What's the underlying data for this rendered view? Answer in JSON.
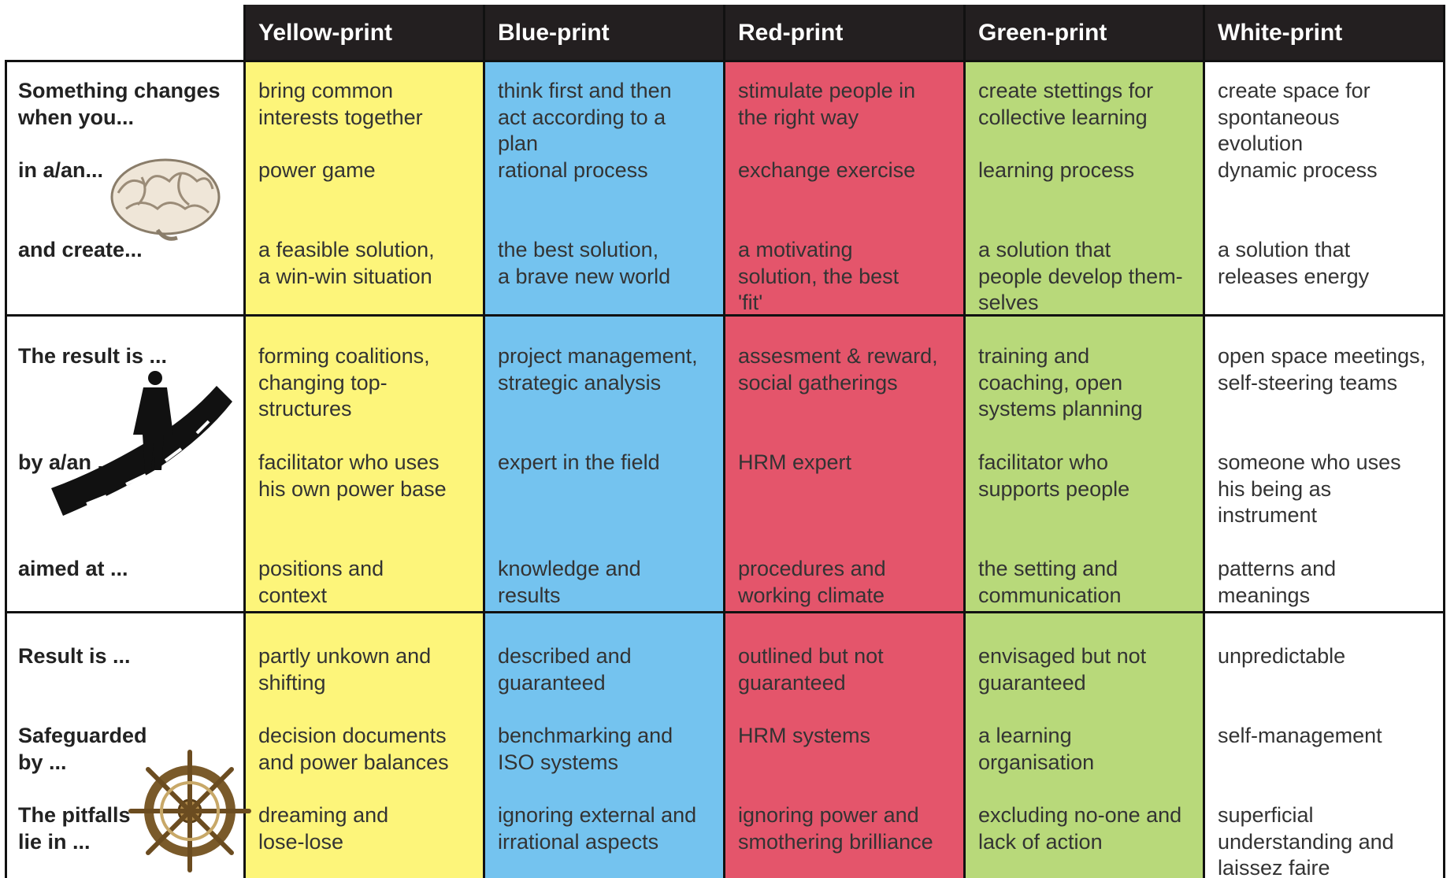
{
  "header": {
    "columns": [
      "Yellow-print",
      "Blue-print",
      "Red-print",
      "Green-print",
      "White-print"
    ]
  },
  "groups": [
    {
      "labels": [
        "Something changes\nwhen you...",
        "in a/an...",
        "and create..."
      ],
      "cells": [
        [
          "bring common\ninterests together",
          "power game",
          "a feasible solution,\na win-win situation"
        ],
        [
          "think first and then\nact according to a\nplan",
          "rational process",
          "the best solution,\na brave new world"
        ],
        [
          "stimulate people in\nthe right way",
          "exchange exercise",
          "a motivating\nsolution, the best\n'fit'"
        ],
        [
          "create stettings for\ncollective learning",
          "learning process",
          "a solution that\npeople develop them-\nselves"
        ],
        [
          "create space for\nspontaneous\nevolution",
          "dynamic process",
          "a solution that\nreleases energy"
        ]
      ]
    },
    {
      "labels": [
        "The result is ...",
        "by a/an ...",
        "aimed at ..."
      ],
      "cells": [
        [
          "forming coalitions,\nchanging top-\nstructures",
          "facilitator who uses\nhis own power base",
          "positions and\ncontext"
        ],
        [
          "project management,\nstrategic analysis",
          "expert in the field",
          "knowledge and\nresults"
        ],
        [
          "assesment & reward,\nsocial gatherings",
          "HRM expert",
          "procedures and\nworking climate"
        ],
        [
          "training and\ncoaching, open\nsystems planning",
          "facilitator who\nsupports people",
          "the setting and\ncommunication"
        ],
        [
          "open space meetings,\nself-steering teams",
          "someone who uses\nhis being as\ninstrument",
          "patterns and\nmeanings"
        ]
      ]
    },
    {
      "labels": [
        "Result is ...",
        "Safeguarded\nby  ...",
        "The pitfalls\nlie in ..."
      ],
      "cells": [
        [
          "partly unkown and\nshifting",
          "decision documents\nand power balances",
          "dreaming and\nlose-lose"
        ],
        [
          "described and\nguaranteed",
          "benchmarking and\nISO systems",
          "ignoring external and\nirrational aspects"
        ],
        [
          "outlined but not\nguaranteed",
          "HRM systems",
          "ignoring power and\nsmothering brilliance"
        ],
        [
          "envisaged but not\nguaranteed",
          "a learning\norganisation",
          "excluding no-one and\nlack of action"
        ],
        [
          "unpredictable",
          "self-management",
          "superficial\nunderstanding and\nlaissez faire"
        ]
      ]
    }
  ]
}
